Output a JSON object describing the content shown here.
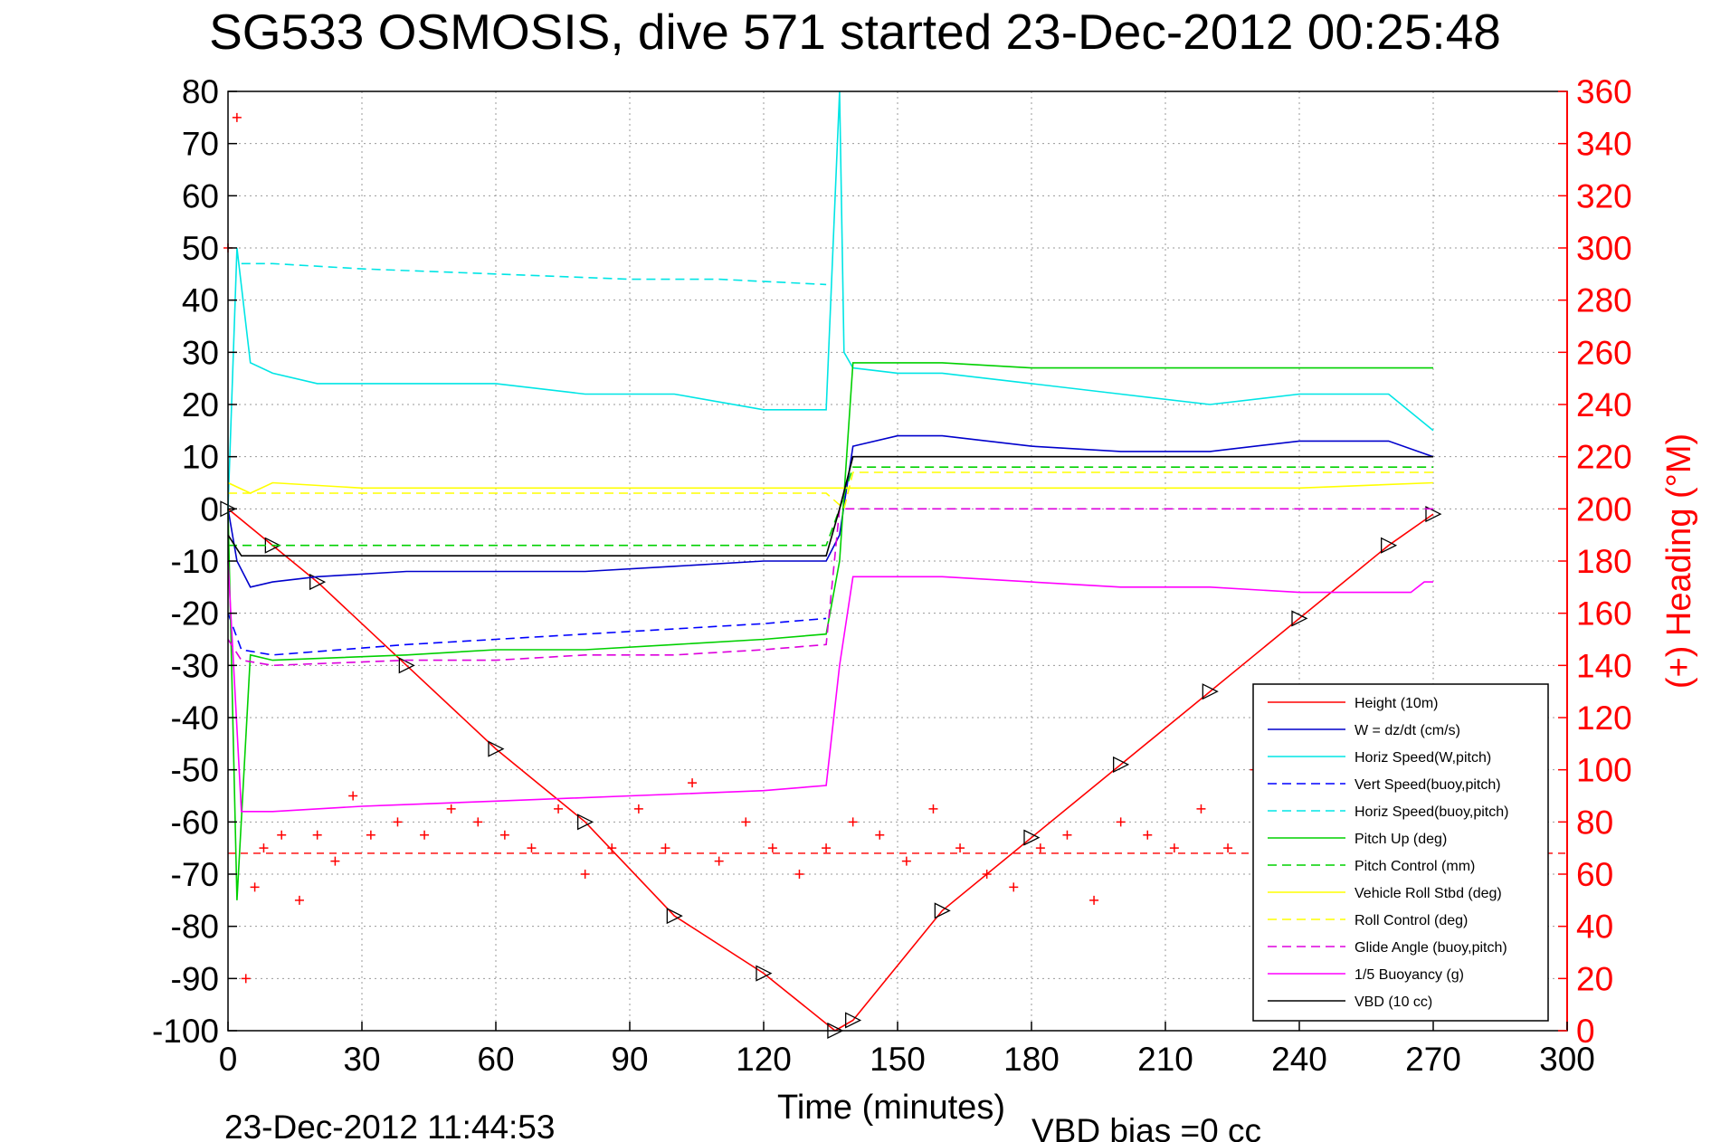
{
  "chart_data": {
    "type": "line",
    "title": "SG533 OSMOSIS, dive 571 started 23-Dec-2012 00:25:48",
    "xlabel": "Time (minutes)",
    "ylabel": "",
    "y2label": "(+) Heading (°M)",
    "xlim": [
      0,
      300
    ],
    "ylim": [
      -100,
      80
    ],
    "y2lim": [
      0,
      360
    ],
    "grid": true,
    "xticks": [
      "0",
      "30",
      "60",
      "90",
      "120",
      "150",
      "180",
      "210",
      "240",
      "270",
      "300"
    ],
    "yticks": [
      "80",
      "70",
      "60",
      "50",
      "40",
      "30",
      "20",
      "10",
      "0",
      "-10",
      "-20",
      "-30",
      "-40",
      "-50",
      "-60",
      "-70",
      "-80",
      "-90",
      "-100"
    ],
    "y2ticks": [
      "360",
      "340",
      "320",
      "300",
      "280",
      "260",
      "240",
      "220",
      "200",
      "180",
      "160",
      "140",
      "120",
      "100",
      "80",
      "60",
      "40",
      "20",
      "0"
    ],
    "legend_position": "bottom-right",
    "series": [
      {
        "name": "Height (10m)",
        "color": "#ff0000",
        "style": "solid",
        "marker": "triangle",
        "x": [
          0,
          10,
          20,
          40,
          60,
          80,
          100,
          120,
          136,
          140,
          160,
          180,
          200,
          220,
          240,
          260,
          270
        ],
        "y": [
          0,
          -7,
          -14,
          -30,
          -46,
          -60,
          -78,
          -89,
          -100,
          -98,
          -77,
          -63,
          -49,
          -35,
          -21,
          -7,
          -1
        ]
      },
      {
        "name": "W = dz/dt (cm/s)",
        "color": "#0000cc",
        "style": "solid",
        "x": [
          0,
          2,
          5,
          10,
          20,
          40,
          60,
          80,
          100,
          120,
          134,
          137,
          140,
          150,
          160,
          180,
          200,
          220,
          240,
          260,
          270
        ],
        "y": [
          0,
          -10,
          -15,
          -14,
          -13,
          -12,
          -12,
          -12,
          -11,
          -10,
          -10,
          -5,
          12,
          14,
          14,
          12,
          11,
          11,
          13,
          13,
          10
        ]
      },
      {
        "name": "Horiz Speed(W,pitch)",
        "color": "#00e5e5",
        "style": "solid",
        "x": [
          0,
          2,
          5,
          10,
          20,
          40,
          60,
          80,
          100,
          120,
          134,
          137,
          138,
          140,
          150,
          160,
          180,
          200,
          220,
          240,
          260,
          270
        ],
        "y": [
          0,
          50,
          28,
          26,
          24,
          24,
          24,
          22,
          22,
          19,
          19,
          80,
          30,
          27,
          26,
          26,
          24,
          22,
          20,
          22,
          22,
          15
        ]
      },
      {
        "name": "Vert Speed(buoy,pitch)",
        "color": "#0000ff",
        "style": "dashed",
        "x": [
          0,
          3,
          10,
          40,
          60,
          80,
          100,
          120,
          134
        ],
        "y": [
          -20,
          -27,
          -28,
          -26,
          -25,
          -24,
          -23,
          -22,
          -21
        ]
      },
      {
        "name": "Horiz Speed(buoy,pitch)",
        "color": "#00e5e5",
        "style": "dashed",
        "x": [
          3,
          10,
          30,
          60,
          90,
          110,
          134
        ],
        "y": [
          47,
          47,
          46,
          45,
          44,
          44,
          43
        ]
      },
      {
        "name": "Pitch Up (deg)",
        "color": "#00d000",
        "style": "solid",
        "x": [
          0,
          2,
          5,
          10,
          40,
          60,
          80,
          100,
          120,
          134,
          137,
          140,
          150,
          160,
          180,
          200,
          220,
          240,
          260,
          270
        ],
        "y": [
          0,
          -75,
          -28,
          -29,
          -28,
          -27,
          -27,
          -26,
          -25,
          -24,
          -10,
          28,
          28,
          28,
          27,
          27,
          27,
          27,
          27,
          27
        ]
      },
      {
        "name": "Pitch Control (mm)",
        "color": "#00d000",
        "style": "dashed",
        "x": [
          0,
          5,
          134,
          137,
          140,
          270
        ],
        "y": [
          -7,
          -7,
          -7,
          0,
          8,
          8
        ]
      },
      {
        "name": "Vehicle Roll Stbd (deg)",
        "color": "#ffff00",
        "style": "solid",
        "x": [
          0,
          5,
          10,
          30,
          60,
          90,
          120,
          134,
          140,
          150,
          180,
          210,
          240,
          270
        ],
        "y": [
          5,
          3,
          5,
          4,
          4,
          4,
          4,
          4,
          4,
          4,
          4,
          4,
          4,
          5
        ]
      },
      {
        "name": "Roll Control (deg)",
        "color": "#ffff00",
        "style": "dashed",
        "x": [
          0,
          134,
          138,
          140,
          270
        ],
        "y": [
          3,
          3,
          0,
          7,
          7
        ]
      },
      {
        "name": "Glide Angle (buoy,pitch)",
        "color": "#dd00dd",
        "style": "dashed",
        "x": [
          0,
          3,
          10,
          40,
          60,
          80,
          100,
          120,
          134,
          137,
          140,
          270
        ],
        "y": [
          -25,
          -29,
          -30,
          -29,
          -29,
          -28,
          -28,
          -27,
          -26,
          0,
          0,
          0
        ]
      },
      {
        "name": "1/5 Buoyancy (g)",
        "color": "#ff00ff",
        "style": "solid",
        "x": [
          0,
          3,
          10,
          30,
          60,
          90,
          120,
          134,
          137,
          140,
          150,
          160,
          180,
          200,
          220,
          240,
          250,
          265,
          268,
          270
        ],
        "y": [
          -10,
          -58,
          -58,
          -57,
          -56,
          -55,
          -54,
          -53,
          -30,
          -13,
          -13,
          -13,
          -14,
          -15,
          -15,
          -16,
          -16,
          -16,
          -14,
          -14
        ]
      },
      {
        "name": "VBD (10 cc)",
        "color": "#000000",
        "style": "solid",
        "x": [
          0,
          3,
          10,
          134,
          137,
          140,
          220,
          270
        ],
        "y": [
          -5,
          -9,
          -9,
          -9,
          0,
          10,
          10,
          10
        ]
      },
      {
        "name": "Heading",
        "color": "#ff0000",
        "style": "plus",
        "axis": "right",
        "x": [
          0,
          2,
          4,
          6,
          8,
          12,
          16,
          20,
          24,
          28,
          32,
          38,
          44,
          50,
          56,
          62,
          68,
          74,
          80,
          86,
          92,
          98,
          104,
          110,
          116,
          122,
          128,
          134,
          140,
          146,
          152,
          158,
          164,
          170,
          176,
          182,
          188,
          194,
          200,
          206,
          212,
          218,
          224,
          230,
          236,
          240
        ],
        "y": [
          300,
          350,
          20,
          55,
          70,
          75,
          50,
          75,
          65,
          90,
          75,
          80,
          75,
          85,
          80,
          75,
          70,
          85,
          60,
          70,
          85,
          70,
          95,
          65,
          80,
          70,
          60,
          70,
          80,
          75,
          65,
          85,
          70,
          60,
          55,
          70,
          75,
          50,
          80,
          75,
          70,
          85,
          70,
          100,
          80,
          70
        ]
      }
    ],
    "reference_line": {
      "y": 68,
      "axis": "right",
      "color": "#ff0000",
      "style": "dashed"
    }
  },
  "footer": {
    "timestamp": "23-Dec-2012 11:44:53",
    "vbd_bias": "VBD bias =0 cc"
  }
}
